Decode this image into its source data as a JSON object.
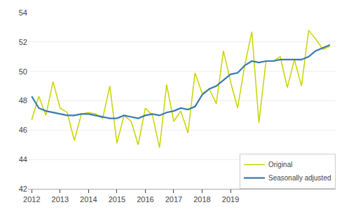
{
  "chart_data": {
    "type": "line",
    "x": [
      2012,
      2012.25,
      2012.5,
      2012.75,
      2013,
      2013.25,
      2013.5,
      2013.75,
      2014,
      2014.25,
      2014.5,
      2014.75,
      2015,
      2015.25,
      2015.5,
      2015.75,
      2016,
      2016.25,
      2016.5,
      2016.75,
      2017,
      2017.25,
      2017.5,
      2017.75,
      2018,
      2018.25,
      2018.5,
      2018.75,
      2019,
      2019.25,
      2019.5,
      2019.75,
      2020,
      2020.25,
      2020.5,
      2020.75,
      2021,
      2021.25,
      2021.5,
      2021.75,
      2022,
      2022.25,
      2022.5
    ],
    "series": [
      {
        "name": "Original",
        "color": "#c8d400",
        "values": [
          46.7,
          48.3,
          47.0,
          49.3,
          47.5,
          47.2,
          45.3,
          47.1,
          47.2,
          47.1,
          46.8,
          49.0,
          45.1,
          47.0,
          46.6,
          45.0,
          47.5,
          47.0,
          44.8,
          49.1,
          46.6,
          47.3,
          45.8,
          49.9,
          48.5,
          48.8,
          47.8,
          51.4,
          49.3,
          47.5,
          50.4,
          52.7,
          46.5,
          50.7,
          50.7,
          51.0,
          48.9,
          50.8,
          49.0,
          52.8,
          52.2,
          51.5,
          51.7
        ]
      },
      {
        "name": "Seasonally adjusted",
        "color": "#3a78b5",
        "values": [
          48.3,
          47.5,
          47.3,
          47.2,
          47.1,
          47.0,
          47.0,
          47.1,
          47.1,
          47.0,
          46.9,
          46.8,
          46.8,
          47.0,
          46.9,
          46.8,
          47.0,
          47.1,
          47.0,
          47.2,
          47.3,
          47.5,
          47.4,
          47.6,
          48.4,
          48.8,
          49.0,
          49.4,
          49.8,
          49.9,
          50.4,
          50.7,
          50.6,
          50.7,
          50.7,
          50.8,
          50.8,
          50.8,
          50.8,
          51.0,
          51.4,
          51.6,
          51.8
        ]
      }
    ],
    "xlim": [
      2011.87,
      2022.7
    ],
    "xticks": [
      2012,
      2013,
      2014,
      2015,
      2016,
      2017,
      2018,
      2019
    ],
    "ylim": [
      42,
      54
    ],
    "yticks": [
      42,
      44,
      46,
      48,
      50,
      52,
      54
    ],
    "grid": "y",
    "legend": "lower right"
  }
}
